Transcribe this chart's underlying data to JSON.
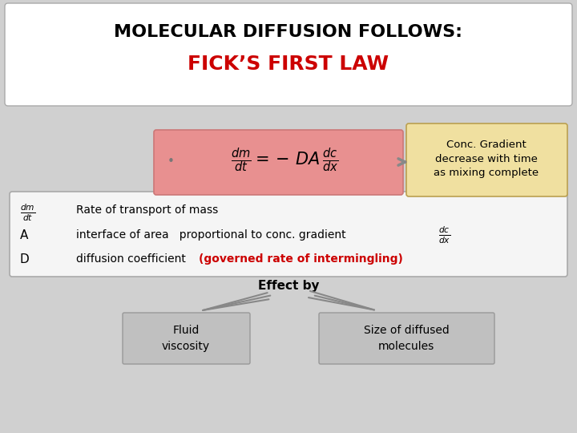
{
  "bg_color": "#d0d0d0",
  "title_line1": "MOLECULAR DIFFUSION FOLLOWS:",
  "title_line2": "FICK’S FIRST LAW",
  "title1_color": "#000000",
  "title2_color": "#cc0000",
  "formula_box_color": "#e8a0a0",
  "conc_box_color": "#f0e0a0",
  "conc_text": "Conc. Gradient\ndecrease with time\nas mixing complete",
  "def_box_color": "#f5f5f5",
  "effect_text": "Effect by",
  "fluid_box_color": "#c0c0c0",
  "size_box_color": "#c0c0c0",
  "fluid_text": "Fluid\nviscosity",
  "size_text": "Size of diffused\nmolecules",
  "red_text": "(governed rate of intermingling)"
}
